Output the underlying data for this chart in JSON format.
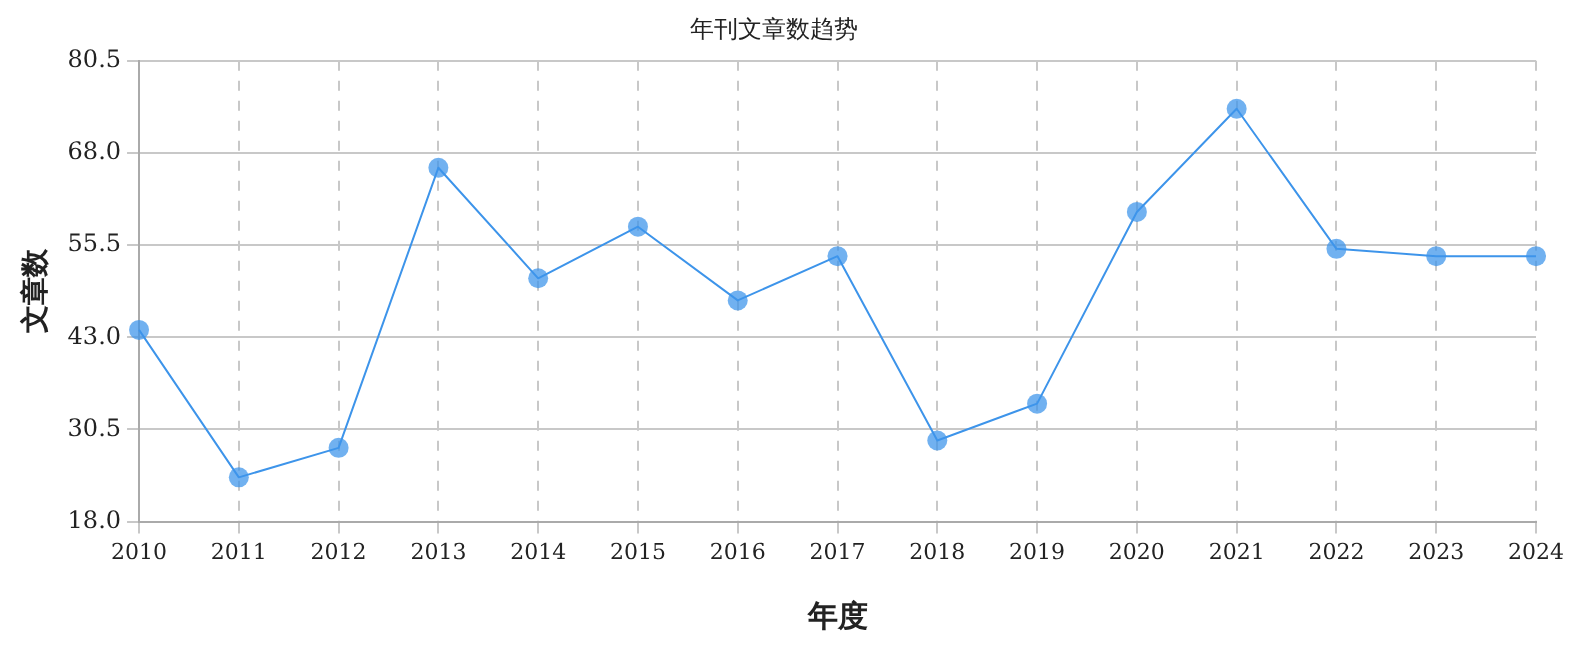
{
  "chart_data": {
    "type": "line",
    "title": "年刊文章数趋势",
    "xlabel": "年度",
    "ylabel": "文章数",
    "categories": [
      "2010",
      "2011",
      "2012",
      "2013",
      "2014",
      "2015",
      "2016",
      "2017",
      "2018",
      "2019",
      "2020",
      "2021",
      "2022",
      "2023",
      "2024"
    ],
    "series": [
      {
        "color": "#3d94ea",
        "values": [
          44,
          24,
          28,
          66,
          51,
          58,
          48,
          54,
          29,
          34,
          60,
          74,
          55,
          54,
          54
        ]
      }
    ],
    "ylim": [
      18,
      80.5
    ],
    "yticks": [
      {
        "value": 18,
        "label": "18.0"
      },
      30.5,
      {
        "value": 43,
        "label": "43.0"
      },
      55.5,
      {
        "value": 68,
        "label": "68.0"
      },
      80.5
    ],
    "grid": true,
    "marker": "circle",
    "line_style": "solid",
    "legend": false
  }
}
